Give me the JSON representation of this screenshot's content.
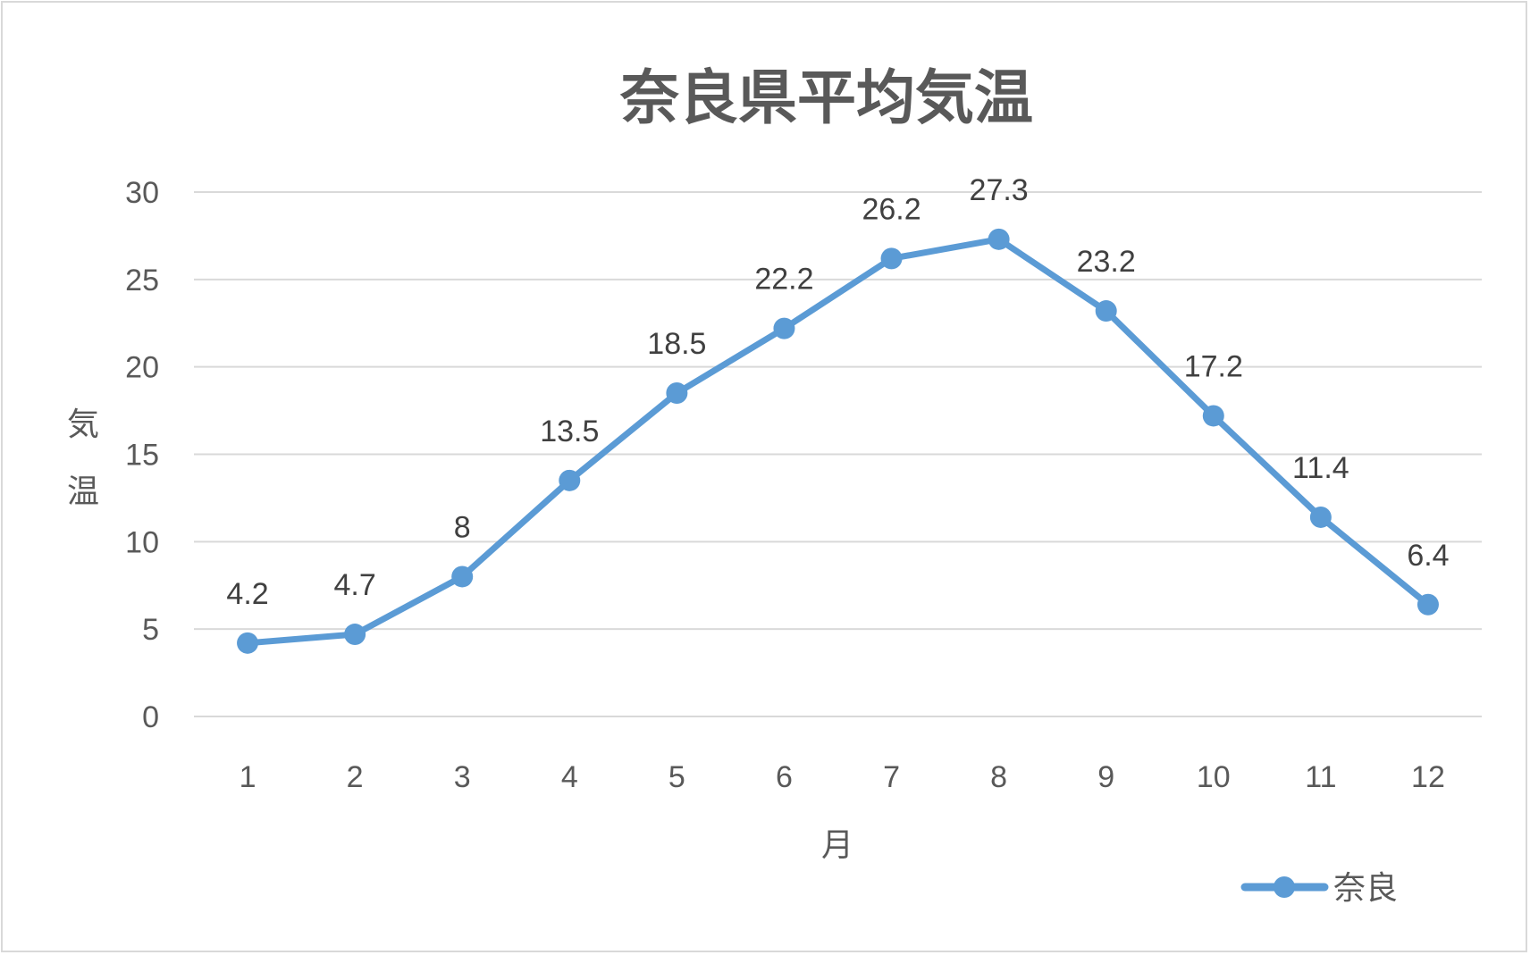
{
  "chart_data": {
    "type": "line",
    "title": "奈良県平均気温",
    "xlabel": "月",
    "ylabel": "気温",
    "categories": [
      "1",
      "2",
      "3",
      "4",
      "5",
      "6",
      "7",
      "8",
      "9",
      "10",
      "11",
      "12"
    ],
    "series": [
      {
        "name": "奈良",
        "values": [
          4.2,
          4.7,
          8,
          13.5,
          18.5,
          22.2,
          26.2,
          27.3,
          23.2,
          17.2,
          11.4,
          6.4
        ],
        "data_labels": [
          "4.2",
          "4.7",
          "8",
          "13.5",
          "18.5",
          "22.2",
          "26.2",
          "27.3",
          "23.2",
          "17.2",
          "11.4",
          "6.4"
        ],
        "color": "#5b9bd5"
      }
    ],
    "ylim": [
      0,
      30
    ],
    "yticks": [
      0,
      5,
      10,
      15,
      20,
      25,
      30
    ],
    "grid": true,
    "legend_position": "bottom-right",
    "colors": {
      "gridline": "#d9d9d9",
      "text": "#595959",
      "border": "#d9d9d9"
    }
  }
}
